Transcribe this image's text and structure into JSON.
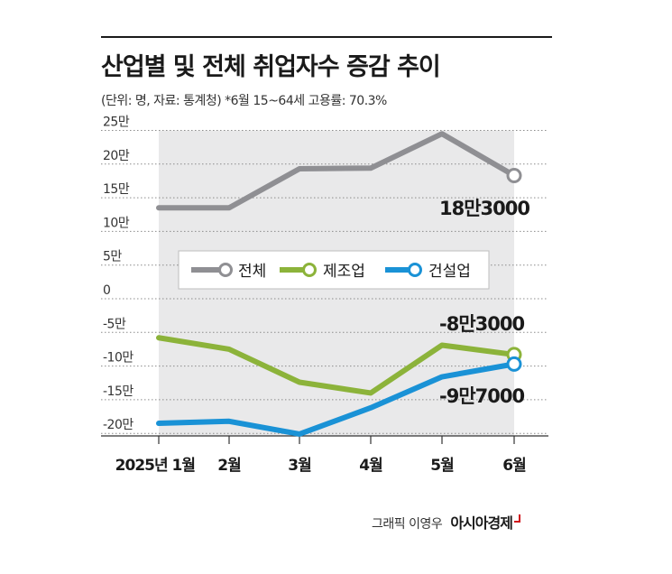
{
  "title": "산업별 및 전체 취업자수 증감 추이",
  "subtitle": "(단위: 명, 자료: 통계청) *6월 15~64세 고용률: 70.3%",
  "credit": {
    "artist": "그래픽 이영우",
    "brand": "아시아경제"
  },
  "chart_data": {
    "type": "line",
    "categories": [
      "2025년 1월",
      "2월",
      "3월",
      "4월",
      "5월",
      "6월"
    ],
    "y_ticks": [
      "25만",
      "20만",
      "15만",
      "10만",
      "5만",
      "0",
      "-5만",
      "-10만",
      "-15만",
      "-20만"
    ],
    "ylim": [
      -220000,
      250000
    ],
    "grid": true,
    "legend": "middle",
    "series": [
      {
        "name": "전체",
        "color": "#8f8f93",
        "values": [
          135000,
          135000,
          193000,
          194000,
          245000,
          183000
        ]
      },
      {
        "name": "제조업",
        "color": "#8cb33a",
        "values": [
          -58000,
          -75000,
          -124000,
          -140000,
          -69000,
          -83000
        ]
      },
      {
        "name": "건설업",
        "color": "#1a92d6",
        "values": [
          -185000,
          -182000,
          -201000,
          -162000,
          -116000,
          -97000
        ]
      }
    ],
    "annotations": [
      "18만3000",
      "-8만3000",
      "-9만7000"
    ]
  }
}
